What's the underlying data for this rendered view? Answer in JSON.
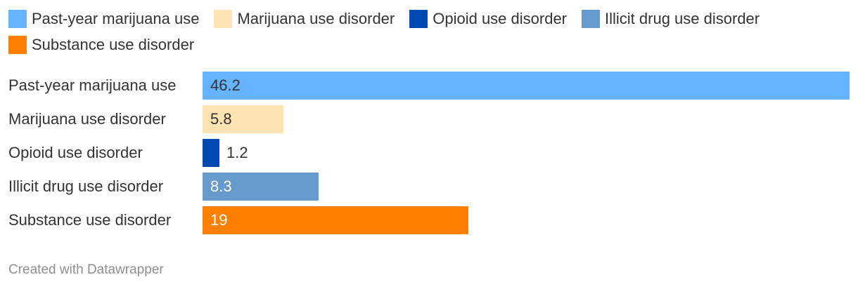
{
  "chart_data": {
    "type": "bar",
    "orientation": "horizontal",
    "categories": [
      "Past-year marijuana use",
      "Marijuana use disorder",
      "Opioid use disorder",
      "Illicit drug use disorder",
      "Substance use disorder"
    ],
    "values": [
      46.2,
      5.8,
      1.2,
      8.3,
      19
    ],
    "value_labels": [
      "46.2",
      "5.8",
      "1.2",
      "8.3",
      "19"
    ],
    "colors": [
      "#66b3ff",
      "#ffe3b3",
      "#004bb3",
      "#6699cc",
      "#ff8000"
    ],
    "label_colors": [
      "#333333",
      "#333333",
      "#333333",
      "#ffffff",
      "#ffffff"
    ],
    "xlim": [
      0,
      46.2
    ],
    "legend": {
      "placement": "top",
      "items": [
        {
          "label": "Past-year marijuana use",
          "color": "#66b3ff"
        },
        {
          "label": "Marijuana use disorder",
          "color": "#ffe3b3"
        },
        {
          "label": "Opioid use disorder",
          "color": "#004bb3"
        },
        {
          "label": "Illicit drug use disorder",
          "color": "#6699cc"
        },
        {
          "label": "Substance use disorder",
          "color": "#ff8000"
        }
      ]
    },
    "grid": false
  },
  "footer": {
    "credit": "Created with Datawrapper"
  }
}
